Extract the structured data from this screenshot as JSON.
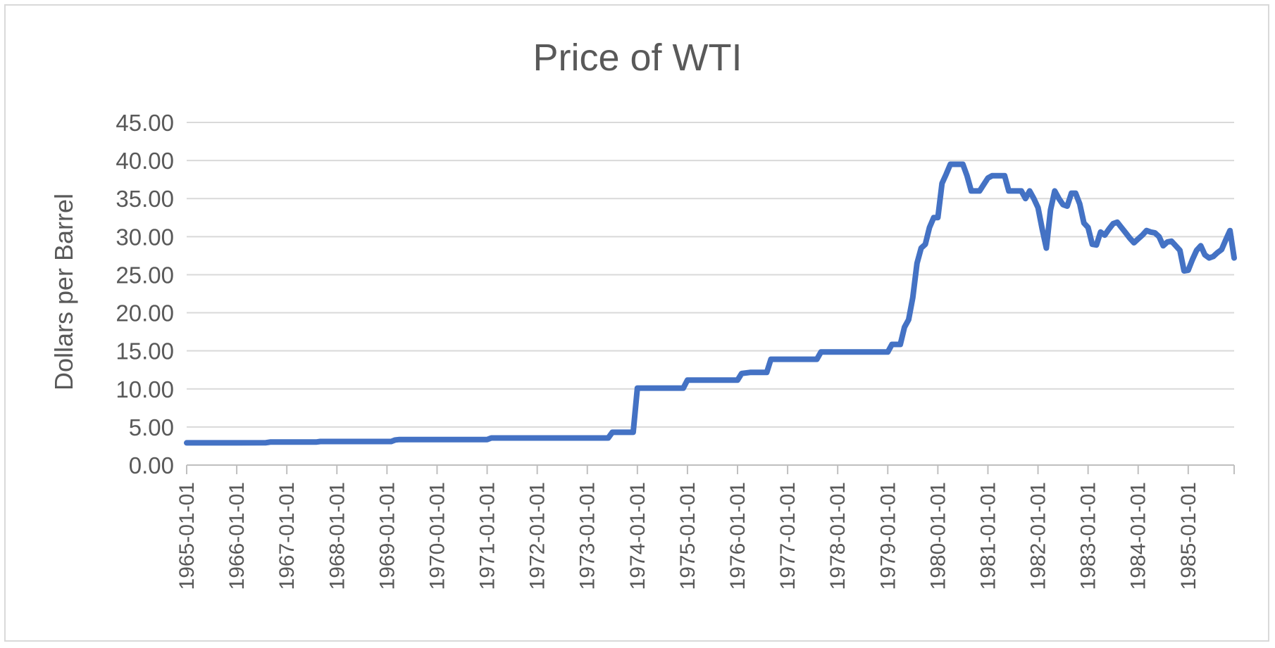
{
  "chart_data": {
    "type": "line",
    "title": "Price of WTI",
    "xlabel": "",
    "ylabel": "Dollars per Barrel",
    "ylim": [
      0,
      45
    ],
    "y_ticks": [
      "0.00",
      "5.00",
      "10.00",
      "15.00",
      "20.00",
      "25.00",
      "30.00",
      "35.00",
      "40.00",
      "45.00"
    ],
    "x_ticks": [
      "1965-01-01",
      "1966-01-01",
      "1967-01-01",
      "1968-01-01",
      "1969-01-01",
      "1970-01-01",
      "1971-01-01",
      "1972-01-01",
      "1973-01-01",
      "1974-01-01",
      "1975-01-01",
      "1976-01-01",
      "1977-01-01",
      "1978-01-01",
      "1979-01-01",
      "1980-01-01",
      "1981-01-01",
      "1982-01-01",
      "1983-01-01",
      "1984-01-01",
      "1985-01-01"
    ],
    "x_range": [
      "1965-01-01",
      "1985-12-01"
    ],
    "grid": true,
    "legend": "none",
    "series": [
      {
        "color": "#4472c4",
        "points": [
          [
            "1965-01-01",
            2.92
          ],
          [
            "1966-01-01",
            2.92
          ],
          [
            "1966-08-01",
            2.94
          ],
          [
            "1966-09-01",
            3.02
          ],
          [
            "1967-01-01",
            3.02
          ],
          [
            "1967-08-01",
            3.02
          ],
          [
            "1967-09-01",
            3.1
          ],
          [
            "1968-01-01",
            3.1
          ],
          [
            "1969-01-01",
            3.1
          ],
          [
            "1969-02-01",
            3.1
          ],
          [
            "1969-03-01",
            3.3
          ],
          [
            "1969-04-01",
            3.35
          ],
          [
            "1970-01-01",
            3.35
          ],
          [
            "1971-01-01",
            3.35
          ],
          [
            "1971-02-01",
            3.56
          ],
          [
            "1972-01-01",
            3.56
          ],
          [
            "1973-01-01",
            3.56
          ],
          [
            "1973-06-01",
            3.56
          ],
          [
            "1973-07-01",
            4.31
          ],
          [
            "1973-12-01",
            4.31
          ],
          [
            "1974-01-01",
            10.11
          ],
          [
            "1974-12-01",
            10.11
          ],
          [
            "1975-01-01",
            11.16
          ],
          [
            "1975-12-01",
            11.16
          ],
          [
            "1976-01-01",
            11.16
          ],
          [
            "1976-02-01",
            12.03
          ],
          [
            "1976-04-01",
            12.17
          ],
          [
            "1976-08-01",
            12.17
          ],
          [
            "1976-09-01",
            13.9
          ],
          [
            "1977-01-01",
            13.9
          ],
          [
            "1977-08-01",
            13.9
          ],
          [
            "1977-09-01",
            14.85
          ],
          [
            "1978-01-01",
            14.85
          ],
          [
            "1979-01-01",
            14.85
          ],
          [
            "1979-02-01",
            15.85
          ],
          [
            "1979-04-01",
            15.85
          ],
          [
            "1979-05-01",
            18.1
          ],
          [
            "1979-06-01",
            19.1
          ],
          [
            "1979-07-01",
            22
          ],
          [
            "1979-08-01",
            26.5
          ],
          [
            "1979-09-01",
            28.5
          ],
          [
            "1979-10-01",
            29
          ],
          [
            "1979-11-01",
            31.2
          ],
          [
            "1979-12-01",
            32.5
          ],
          [
            "1980-01-01",
            32.5
          ],
          [
            "1980-02-01",
            37
          ],
          [
            "1980-03-01",
            38.2
          ],
          [
            "1980-04-01",
            39.5
          ],
          [
            "1980-07-01",
            39.5
          ],
          [
            "1980-08-01",
            38
          ],
          [
            "1980-09-01",
            36
          ],
          [
            "1980-11-01",
            36
          ],
          [
            "1981-01-01",
            37.7
          ],
          [
            "1981-02-01",
            38
          ],
          [
            "1981-05-01",
            38
          ],
          [
            "1981-06-01",
            36
          ],
          [
            "1981-09-01",
            36
          ],
          [
            "1981-10-01",
            35
          ],
          [
            "1981-11-01",
            36
          ],
          [
            "1981-12-01",
            35
          ],
          [
            "1982-01-01",
            33.8
          ],
          [
            "1982-02-01",
            31
          ],
          [
            "1982-03-01",
            28.5
          ],
          [
            "1982-04-01",
            33.5
          ],
          [
            "1982-05-01",
            36
          ],
          [
            "1982-06-01",
            35
          ],
          [
            "1982-07-01",
            34.2
          ],
          [
            "1982-08-01",
            34
          ],
          [
            "1982-09-01",
            35.7
          ],
          [
            "1982-10-01",
            35.7
          ],
          [
            "1982-11-01",
            34.3
          ],
          [
            "1982-12-01",
            31.8
          ],
          [
            "1983-01-01",
            31.2
          ],
          [
            "1983-02-01",
            29
          ],
          [
            "1983-03-01",
            28.9
          ],
          [
            "1983-04-01",
            30.6
          ],
          [
            "1983-05-01",
            30.2
          ],
          [
            "1983-06-01",
            31
          ],
          [
            "1983-07-01",
            31.7
          ],
          [
            "1983-08-01",
            31.9
          ],
          [
            "1983-09-01",
            31.2
          ],
          [
            "1983-10-01",
            30.5
          ],
          [
            "1983-11-01",
            29.8
          ],
          [
            "1983-12-01",
            29.2
          ],
          [
            "1984-01-01",
            29.7
          ],
          [
            "1984-02-01",
            30.2
          ],
          [
            "1984-03-01",
            30.8
          ],
          [
            "1984-04-01",
            30.6
          ],
          [
            "1984-05-01",
            30.5
          ],
          [
            "1984-06-01",
            30
          ],
          [
            "1984-07-01",
            28.8
          ],
          [
            "1984-08-01",
            29.3
          ],
          [
            "1984-09-01",
            29.4
          ],
          [
            "1984-10-01",
            28.8
          ],
          [
            "1984-11-01",
            28.2
          ],
          [
            "1984-12-01",
            25.5
          ],
          [
            "1985-01-01",
            25.6
          ],
          [
            "1985-02-01",
            27
          ],
          [
            "1985-03-01",
            28.2
          ],
          [
            "1985-04-01",
            28.8
          ],
          [
            "1985-05-01",
            27.6
          ],
          [
            "1985-06-01",
            27.2
          ],
          [
            "1985-07-01",
            27.4
          ],
          [
            "1985-08-01",
            27.9
          ],
          [
            "1985-09-01",
            28.3
          ],
          [
            "1985-10-01",
            29.6
          ],
          [
            "1985-11-01",
            30.8
          ],
          [
            "1985-12-01",
            27.2
          ]
        ]
      }
    ]
  }
}
